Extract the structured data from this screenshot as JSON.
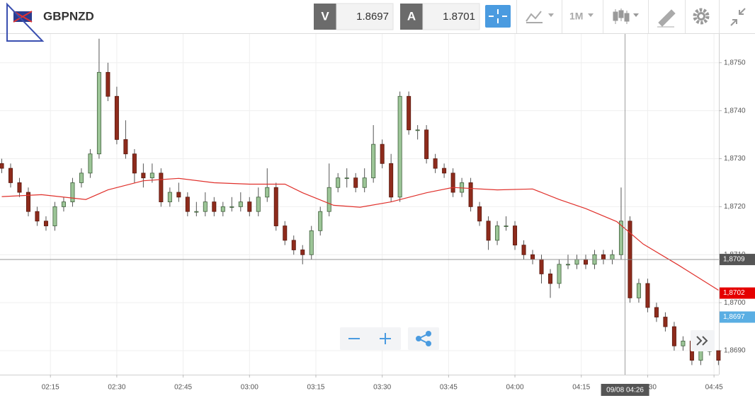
{
  "toolbar": {
    "symbol": "GBPNZD",
    "bid_label": "V",
    "bid": 1.8697,
    "ask_label": "A",
    "ask": 1.8701,
    "timeframe": "1M"
  },
  "chart_data": {
    "type": "candlestick",
    "x": [
      124,
      126,
      128,
      130,
      132,
      134,
      136,
      138,
      140,
      142,
      144,
      146,
      148,
      150,
      152,
      154,
      156,
      158,
      160,
      162,
      164,
      166,
      168,
      170,
      172,
      174,
      176,
      178,
      180,
      182,
      184,
      186,
      188,
      190,
      192,
      194,
      196,
      198,
      200,
      202,
      204,
      206,
      208,
      210,
      212,
      214,
      216,
      218,
      220,
      222,
      224,
      226,
      228,
      230,
      232,
      234,
      236,
      238,
      240,
      242,
      244,
      246,
      248,
      250,
      252,
      254,
      256,
      258,
      260,
      262,
      264,
      266,
      268,
      270,
      272,
      274,
      276,
      278,
      280,
      282,
      284,
      286
    ],
    "candles": {
      "color_up": "#9cc597",
      "color_down": "#8e2b1c",
      "values": [
        [
          1.8729,
          1.873,
          1.8727,
          1.8728
        ],
        [
          1.8728,
          1.8729,
          1.8724,
          1.8725
        ],
        [
          1.8725,
          1.8726,
          1.8722,
          1.8723
        ],
        [
          1.8723,
          1.8724,
          1.8718,
          1.8719
        ],
        [
          1.8719,
          1.872,
          1.8716,
          1.8717
        ],
        [
          1.8717,
          1.8718,
          1.8715,
          1.8716
        ],
        [
          1.8716,
          1.8721,
          1.8715,
          1.872
        ],
        [
          1.872,
          1.8722,
          1.8719,
          1.8721
        ],
        [
          1.8721,
          1.8726,
          1.872,
          1.8725
        ],
        [
          1.8725,
          1.8728,
          1.8724,
          1.8727
        ],
        [
          1.8727,
          1.8732,
          1.8726,
          1.8731
        ],
        [
          1.8731,
          1.8755,
          1.873,
          1.8748
        ],
        [
          1.8748,
          1.875,
          1.8742,
          1.8743
        ],
        [
          1.8743,
          1.8745,
          1.8733,
          1.8734
        ],
        [
          1.8734,
          1.8738,
          1.873,
          1.8731
        ],
        [
          1.8731,
          1.8732,
          1.8725,
          1.8727
        ],
        [
          1.8727,
          1.8729,
          1.8724,
          1.8726
        ],
        [
          1.8726,
          1.8729,
          1.8725,
          1.8727
        ],
        [
          1.8727,
          1.8728,
          1.872,
          1.8721
        ],
        [
          1.8721,
          1.8724,
          1.872,
          1.8723
        ],
        [
          1.8723,
          1.8725,
          1.8721,
          1.8722
        ],
        [
          1.8722,
          1.8723,
          1.8718,
          1.8719
        ],
        [
          1.8719,
          1.8721,
          1.8718,
          1.8719
        ],
        [
          1.8719,
          1.8723,
          1.8718,
          1.8721
        ],
        [
          1.8721,
          1.8722,
          1.8718,
          1.8719
        ],
        [
          1.8719,
          1.8721,
          1.8718,
          1.872
        ],
        [
          1.872,
          1.8722,
          1.8719,
          1.872
        ],
        [
          1.872,
          1.8723,
          1.8719,
          1.8721
        ],
        [
          1.8721,
          1.8722,
          1.8718,
          1.8719
        ],
        [
          1.8719,
          1.8724,
          1.8718,
          1.8722
        ],
        [
          1.8722,
          1.8728,
          1.8721,
          1.8724
        ],
        [
          1.8724,
          1.8725,
          1.8715,
          1.8716
        ],
        [
          1.8716,
          1.8717,
          1.8712,
          1.8713
        ],
        [
          1.8713,
          1.8714,
          1.871,
          1.8711
        ],
        [
          1.8711,
          1.8712,
          1.8708,
          1.871
        ],
        [
          1.871,
          1.8716,
          1.8709,
          1.8715
        ],
        [
          1.8715,
          1.872,
          1.8714,
          1.8719
        ],
        [
          1.8719,
          1.8729,
          1.8718,
          1.8724
        ],
        [
          1.8724,
          1.8727,
          1.8723,
          1.8726
        ],
        [
          1.8726,
          1.8728,
          1.8724,
          1.8726
        ],
        [
          1.8726,
          1.8727,
          1.8723,
          1.8724
        ],
        [
          1.8724,
          1.8728,
          1.8723,
          1.8726
        ],
        [
          1.8726,
          1.8737,
          1.8725,
          1.8733
        ],
        [
          1.8733,
          1.8734,
          1.8728,
          1.8729
        ],
        [
          1.8729,
          1.8731,
          1.8721,
          1.8722
        ],
        [
          1.8722,
          1.8744,
          1.8721,
          1.8743
        ],
        [
          1.8743,
          1.8744,
          1.8735,
          1.8736
        ],
        [
          1.8736,
          1.8737,
          1.8734,
          1.8736
        ],
        [
          1.8736,
          1.8737,
          1.8729,
          1.873
        ],
        [
          1.873,
          1.8731,
          1.8727,
          1.8728
        ],
        [
          1.8728,
          1.8729,
          1.8726,
          1.8727
        ],
        [
          1.8727,
          1.8728,
          1.8722,
          1.8723
        ],
        [
          1.8723,
          1.8726,
          1.8722,
          1.8725
        ],
        [
          1.8725,
          1.8726,
          1.8719,
          1.872
        ],
        [
          1.872,
          1.8721,
          1.8716,
          1.8717
        ],
        [
          1.8717,
          1.8718,
          1.8711,
          1.8713
        ],
        [
          1.8713,
          1.8717,
          1.8712,
          1.8716
        ],
        [
          1.8716,
          1.8718,
          1.8715,
          1.8716
        ],
        [
          1.8716,
          1.8717,
          1.8711,
          1.8712
        ],
        [
          1.8712,
          1.8713,
          1.8709,
          1.871
        ],
        [
          1.871,
          1.8711,
          1.8708,
          1.8709
        ],
        [
          1.8709,
          1.871,
          1.8704,
          1.8706
        ],
        [
          1.8706,
          1.8707,
          1.8701,
          1.8704
        ],
        [
          1.8704,
          1.8709,
          1.8703,
          1.8708
        ],
        [
          1.8708,
          1.871,
          1.8707,
          1.8708
        ],
        [
          1.8708,
          1.871,
          1.8707,
          1.8709
        ],
        [
          1.8709,
          1.871,
          1.8707,
          1.8708
        ],
        [
          1.8708,
          1.8711,
          1.8707,
          1.871
        ],
        [
          1.871,
          1.8711,
          1.8708,
          1.8709
        ],
        [
          1.8709,
          1.8711,
          1.8708,
          1.871
        ],
        [
          1.871,
          1.8724,
          1.8709,
          1.8717
        ],
        [
          1.8717,
          1.8718,
          1.87,
          1.8701
        ],
        [
          1.8701,
          1.8705,
          1.87,
          1.8704
        ],
        [
          1.8704,
          1.8705,
          1.8698,
          1.8699
        ],
        [
          1.8699,
          1.87,
          1.8696,
          1.8697
        ],
        [
          1.8697,
          1.8698,
          1.8694,
          1.8695
        ],
        [
          1.8695,
          1.8696,
          1.869,
          1.8691
        ],
        [
          1.8691,
          1.8693,
          1.869,
          1.8692
        ],
        [
          1.8692,
          1.8693,
          1.8687,
          1.8688
        ],
        [
          1.8688,
          1.8691,
          1.8687,
          1.869
        ],
        [
          1.869,
          1.8691,
          1.8689,
          1.869
        ],
        [
          1.869,
          1.869,
          1.8687,
          1.8688
        ]
      ]
    },
    "moving_average": {
      "color": "#e0302b",
      "x": [
        124,
        133,
        143,
        148,
        156,
        164,
        172,
        180,
        188,
        192,
        199,
        205,
        212,
        220,
        226,
        236,
        244,
        250,
        256,
        263,
        269,
        277,
        286
      ],
      "values": [
        1.87221,
        1.87225,
        1.87215,
        1.87235,
        1.87254,
        1.87259,
        1.8725,
        1.87247,
        1.87247,
        1.87229,
        1.87203,
        1.87199,
        1.8721,
        1.87229,
        1.8724,
        1.87235,
        1.87237,
        1.87215,
        1.87196,
        1.87169,
        1.87122,
        1.87078,
        1.87026
      ]
    },
    "xlim": [
      123.6,
      286.1
    ],
    "ylim": [
      1.8685,
      1.8756
    ],
    "xticks": [
      {
        "value": 135,
        "label": "02:15"
      },
      {
        "value": 150,
        "label": "02:30"
      },
      {
        "value": 165,
        "label": "02:45"
      },
      {
        "value": 180,
        "label": "03:00"
      },
      {
        "value": 195,
        "label": "03:15"
      },
      {
        "value": 210,
        "label": "03:30"
      },
      {
        "value": 225,
        "label": "03:45"
      },
      {
        "value": 240,
        "label": "04:00"
      },
      {
        "value": 255,
        "label": "04:15"
      },
      {
        "value": 270,
        "label": "04:30"
      },
      {
        "value": 285,
        "label": "04:45"
      }
    ],
    "yticks": [
      {
        "value": 1.869,
        "label": "1,8690"
      },
      {
        "value": 1.87,
        "label": "1,8700"
      },
      {
        "value": 1.871,
        "label": "1,8710"
      },
      {
        "value": 1.872,
        "label": "1,8720"
      },
      {
        "value": 1.873,
        "label": "1,8730"
      },
      {
        "value": 1.874,
        "label": "1,8740"
      },
      {
        "value": 1.875,
        "label": "1,8750"
      }
    ],
    "grid": true,
    "crosshair": {
      "x": 264.9,
      "x_label": "09/08 04:26",
      "y": 1.8709,
      "y_label": "1,8709"
    },
    "price_markers": [
      {
        "value": 1.8702,
        "label": "1,8702",
        "color": "#e50000"
      },
      {
        "value": 1.8697,
        "label": "1,8697",
        "color": "#5aaee3"
      }
    ]
  }
}
